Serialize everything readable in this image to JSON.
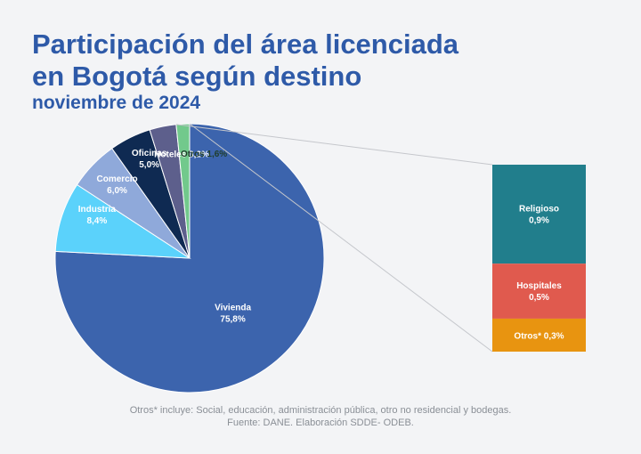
{
  "header": {
    "title_line1": "Participación del área licenciada",
    "title_line2": "en Bogotá según destino",
    "subtitle": "noviembre de 2024"
  },
  "chart_data": [
    {
      "type": "pie",
      "categories": [
        "Vivienda",
        "Industria",
        "Comercio",
        "Oficinas",
        "Hoteles",
        "Otros"
      ],
      "values": [
        75.8,
        8.4,
        6.0,
        5.0,
        3.2,
        1.6
      ],
      "labels": [
        "75,8%",
        "8,4%",
        "6,0%",
        "5,0%",
        "3,2%",
        "1,6%"
      ],
      "colors": [
        "#3c64ad",
        "#5bd2fb",
        "#8fa9da",
        "#0f2a52",
        "#5d5f8c",
        "#72c98c"
      ]
    },
    {
      "type": "bar",
      "stacked": true,
      "categories": [
        "Religioso",
        "Hospitales",
        "Otros*"
      ],
      "values": [
        0.9,
        0.5,
        0.3
      ],
      "labels": [
        "0,9%",
        "0,5%",
        "0,3%"
      ],
      "colors": [
        "#217e8c",
        "#e05a4e",
        "#e89410"
      ]
    }
  ],
  "footer": {
    "note": "Otros* incluye: Social, educación, administración pública, otro no residencial y bodegas.",
    "source": "Fuente: DANE. Elaboración SDDE- ODEB."
  }
}
